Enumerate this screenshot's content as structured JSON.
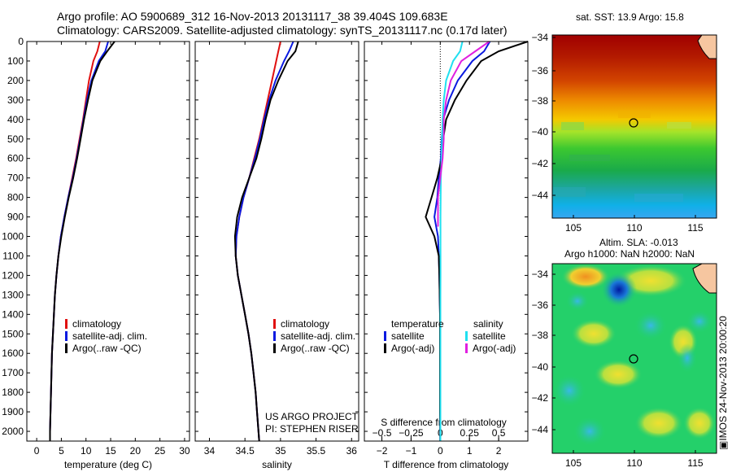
{
  "header": {
    "line1": "Argo profile: AO 5900689_312 16-Nov-2013 20131117_38 39.404S 109.683E",
    "line2": "Climatology: CARS2009. Satellite-adjusted climatology: synTS_20131117.nc (0.17d later)"
  },
  "colors": {
    "climatology": "#e01010",
    "satellite_adj": "#0a1ae0",
    "argo": "#000000",
    "salinity_sat": "#20e0f0",
    "salinity_argo": "#e020e0"
  },
  "legend_profiles": {
    "climatology": "climatology",
    "satellite": "satellite-adj. clim.",
    "argo": "Argo(..raw -QC)"
  },
  "legend_diff": {
    "temp_header": "temperature",
    "sal_header": "salinity",
    "satellite": "satellite",
    "argo": "Argo(-adj)"
  },
  "credit": {
    "line1": "US ARGO PROJECT",
    "line2": "PI: STEPHEN RISER"
  },
  "map_sst": {
    "title": "sat. SST: 13.9 Argo: 15.8"
  },
  "map_sla": {
    "title1": "Altim. SLA: -0.013",
    "title2": "Argo h1000: NaN h2000: NaN"
  },
  "timestamp": "IMOS 24-Nov-2013 20:00:20",
  "chart_data": [
    {
      "type": "line",
      "panel": "temperature",
      "xlabel": "temperature (deg C)",
      "ylabel": "",
      "xlim": [
        -2,
        31
      ],
      "ylim": [
        2050,
        0
      ],
      "xticks": [
        0,
        5,
        10,
        15,
        20,
        25,
        30
      ],
      "yticks": [
        0,
        100,
        200,
        300,
        400,
        500,
        600,
        700,
        800,
        900,
        1000,
        1100,
        1200,
        1300,
        1400,
        1500,
        1600,
        1700,
        1800,
        1900,
        2000
      ],
      "y": [
        0,
        50,
        100,
        200,
        300,
        400,
        500,
        600,
        700,
        800,
        900,
        1000,
        1100,
        1200,
        1300,
        1400,
        1500,
        1600,
        1700,
        1800,
        1900,
        2000,
        2050
      ],
      "series": [
        {
          "name": "climatology",
          "x": [
            12.8,
            12.3,
            11.5,
            10.6,
            10.0,
            9.4,
            8.7,
            8.0,
            7.2,
            6.4,
            5.6,
            4.9,
            4.4,
            4.0,
            3.7,
            3.5,
            3.3,
            3.1,
            3.0,
            2.9,
            2.8,
            2.7,
            2.7
          ]
        },
        {
          "name": "satellite-adj. clim.",
          "x": [
            14.5,
            13.9,
            12.6,
            11.1,
            10.2,
            9.5,
            8.8,
            8.1,
            7.3,
            6.4,
            5.6,
            4.9,
            4.4,
            4.0,
            3.7,
            3.5,
            3.3,
            3.1,
            3.0,
            2.9,
            2.8,
            2.7,
            2.7
          ]
        },
        {
          "name": "Argo(..raw -QC)",
          "x": [
            15.8,
            14.3,
            12.9,
            11.3,
            10.4,
            9.6,
            8.9,
            8.2,
            7.4,
            6.5,
            5.7,
            5.0,
            4.4,
            4.0,
            3.7,
            3.5,
            3.3,
            3.1,
            3.0,
            2.9,
            2.8,
            2.7,
            2.7
          ]
        }
      ]
    },
    {
      "type": "line",
      "panel": "salinity",
      "xlabel": "salinity",
      "ylabel": "",
      "xlim": [
        33.8,
        36.1
      ],
      "ylim": [
        2050,
        0
      ],
      "xticks": [
        34,
        34.5,
        35,
        35.5,
        36
      ],
      "xtick_labels": [
        "34",
        "34.5",
        "35",
        "35.5",
        "36"
      ],
      "y": [
        0,
        50,
        100,
        200,
        300,
        400,
        500,
        600,
        700,
        800,
        900,
        1000,
        1100,
        1200,
        1300,
        1400,
        1500,
        1600,
        1700,
        1800,
        1900,
        2000,
        2050
      ],
      "series": [
        {
          "name": "climatology",
          "x": [
            35.0,
            34.97,
            34.94,
            34.88,
            34.82,
            34.76,
            34.7,
            34.63,
            34.56,
            34.48,
            34.42,
            34.38,
            34.37,
            34.4,
            34.45,
            34.5,
            34.55,
            34.59,
            34.62,
            34.65,
            34.67,
            34.69,
            34.7
          ]
        },
        {
          "name": "satellite-adj. clim.",
          "x": [
            35.18,
            35.12,
            35.05,
            34.93,
            34.84,
            34.77,
            34.71,
            34.64,
            34.56,
            34.48,
            34.42,
            34.38,
            34.37,
            34.4,
            34.45,
            34.5,
            34.55,
            34.59,
            34.62,
            34.65,
            34.67,
            34.69,
            34.7
          ]
        },
        {
          "name": "Argo(..raw -QC)",
          "x": [
            35.25,
            35.21,
            35.1,
            34.97,
            34.86,
            34.79,
            34.73,
            34.66,
            34.56,
            34.46,
            34.39,
            34.36,
            34.37,
            34.4,
            34.45,
            34.5,
            34.55,
            34.59,
            34.62,
            34.65,
            34.67,
            34.69,
            34.7
          ]
        }
      ]
    },
    {
      "type": "line",
      "panel": "difference",
      "xlabel": "T difference from climatology",
      "x2label": "S difference from climatology",
      "xlim": [
        -2.6,
        3.0
      ],
      "ylim": [
        2050,
        0
      ],
      "xticks": [
        -2,
        -1,
        0,
        1,
        2
      ],
      "xtick_labels": [
        "−2",
        "−1",
        "0",
        "1",
        "2"
      ],
      "x2ticks": [
        -0.5,
        -0.25,
        0,
        0.25,
        0.5
      ],
      "x2tick_labels": [
        "−0.5",
        "−0.25",
        "0",
        "0.25",
        "0.5"
      ],
      "y": [
        0,
        50,
        100,
        200,
        300,
        400,
        500,
        600,
        700,
        800,
        900,
        1000,
        1100,
        1200,
        1300,
        1400,
        1500,
        1600,
        1700,
        1800,
        1900,
        2000,
        2050
      ],
      "series": [
        {
          "name": "temperature satellite",
          "x": [
            1.7,
            1.5,
            1.1,
            0.6,
            0.3,
            0.1,
            0.05,
            0.02,
            -0.05,
            -0.1,
            -0.2,
            -0.08,
            -0.05,
            -0.03,
            -0.02,
            -0.01,
            -0.01,
            -0.01,
            -0.01,
            -0.01,
            -0.01,
            0,
            0
          ]
        },
        {
          "name": "temperature Argo(-adj)",
          "x": [
            3.0,
            2.0,
            1.4,
            0.9,
            0.5,
            0.2,
            0.1,
            0.05,
            -0.1,
            -0.3,
            -0.5,
            -0.2,
            -0.05,
            -0.03,
            -0.02,
            -0.01,
            -0.01,
            -0.01,
            -0.01,
            -0.01,
            -0.01,
            0,
            0
          ]
        },
        {
          "name": "salinity satellite",
          "x": [
            0.19,
            0.17,
            0.11,
            0.05,
            0.03,
            0.02,
            0.015,
            0.01,
            0.005,
            0.003,
            0.002,
            0.002,
            0.002,
            0.002,
            0.001,
            0.001,
            0.001,
            0.001,
            0.001,
            0.001,
            0.001,
            0.001,
            0.001
          ]
        },
        {
          "name": "salinity Argo(-adj)",
          "x": [
            0.42,
            0.3,
            0.18,
            0.09,
            0.05,
            0.03,
            0.03,
            0.02,
            0.0,
            -0.02,
            -0.02
          ]
        }
      ],
      "salinity_argo_depths": [
        0,
        50,
        100,
        200,
        300,
        400,
        500,
        600,
        700,
        800,
        950
      ]
    }
  ]
}
